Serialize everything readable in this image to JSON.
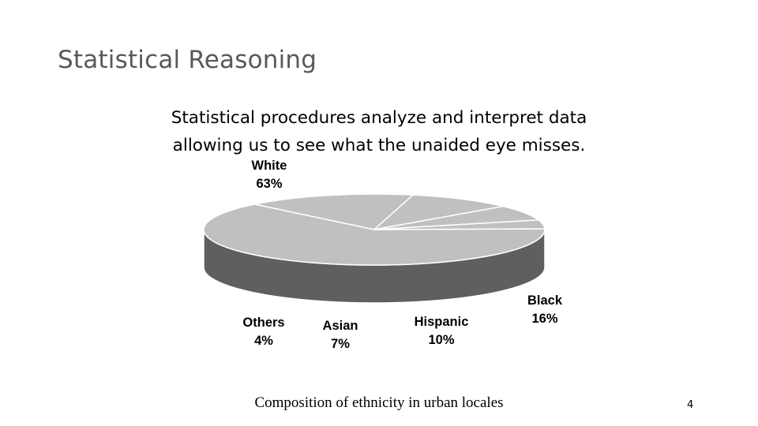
{
  "slide": {
    "title": "Statistical Reasoning",
    "subtitle_line1": "Statistical procedures analyze and interpret data",
    "subtitle_line2": "allowing us to see what the unaided eye misses.",
    "caption": "Composition of ethnicity in urban locales",
    "page_number": "4"
  },
  "chart_data": {
    "type": "pie",
    "style": "3d",
    "title": "",
    "slices": [
      {
        "label": "White",
        "value_label": "63%",
        "value": 63,
        "color": "#c0c0c0"
      },
      {
        "label": "Black",
        "value_label": "16%",
        "value": 16,
        "color": "#c0c0c0"
      },
      {
        "label": "Hispanic",
        "value_label": "10%",
        "value": 10,
        "color": "#c0c0c0"
      },
      {
        "label": "Asian",
        "value_label": "7%",
        "value": 7,
        "color": "#c0c0c0"
      },
      {
        "label": "Others",
        "value_label": "4%",
        "value": 4,
        "color": "#c0c0c0"
      }
    ],
    "side_color": "#5f5f5f",
    "edge_color": "#ffffff"
  }
}
